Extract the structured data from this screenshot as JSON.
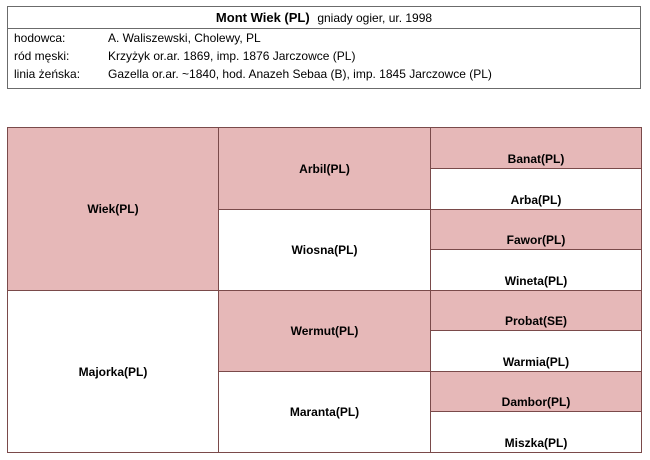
{
  "header": {
    "horse_name": "Mont Wiek (PL)",
    "description": "gniady ogier, ur. 1998",
    "rows": [
      {
        "label": "hodowca:",
        "value": "A. Waliszewski, Cholewy, PL"
      },
      {
        "label": "ród męski:",
        "value": "Krzyżyk or.ar. 1869, imp. 1876 Jarczowce (PL)"
      },
      {
        "label": "linia żeńska:",
        "value": "Gazella or.ar. ~1840, hod. Anazeh Sebaa (B), imp. 1845 Jarczowce (PL)"
      }
    ]
  },
  "pedigree": {
    "sire": "Wiek(PL)",
    "dam": "Majorka(PL)",
    "sire_sire": "Arbil(PL)",
    "sire_dam": "Wiosna(PL)",
    "dam_sire": "Wermut(PL)",
    "dam_dam": "Maranta(PL)",
    "ggs": [
      "Banat(PL)",
      "Arba(PL)",
      "Fawor(PL)",
      "Wineta(PL)",
      "Probat(SE)",
      "Warmia(PL)",
      "Dambor(PL)",
      "Miszka(PL)"
    ]
  },
  "colors": {
    "male": "#e6b8b8",
    "female": "#ffffff",
    "border": "#7a4a4a"
  }
}
